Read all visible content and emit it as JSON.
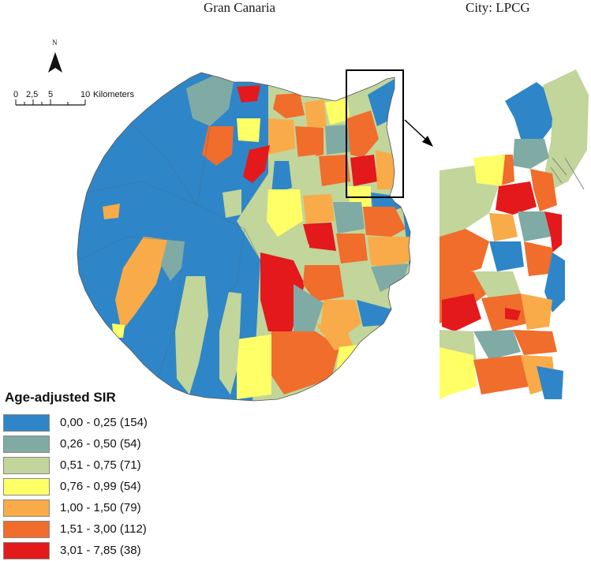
{
  "titles": {
    "main": "Gran Canaria",
    "city": "City: LPCG"
  },
  "north_arrow": {
    "letter": "N"
  },
  "scale_bar": {
    "ticks": [
      "0",
      "2,5",
      "5",
      "10"
    ],
    "unit": "Kilometers"
  },
  "legend": {
    "title": "Age-adjusted SIR",
    "items": [
      {
        "label": "0,00 - 0,25 (154)",
        "color": "#2e86c8"
      },
      {
        "label": "0,26 - 0,50 (54)",
        "color": "#80aaa4"
      },
      {
        "label": "0,51 - 0,75 (71)",
        "color": "#c2d59a"
      },
      {
        "label": "0,76 - 0,99 (54)",
        "color": "#ffff66"
      },
      {
        "label": "1,00 - 1,50 (79)",
        "color": "#f8ab48"
      },
      {
        "label": "1,51 - 3,00 (112)",
        "color": "#f06d2c"
      },
      {
        "label": "3,01 - 7,85 (38)",
        "color": "#e3191b"
      }
    ]
  }
}
